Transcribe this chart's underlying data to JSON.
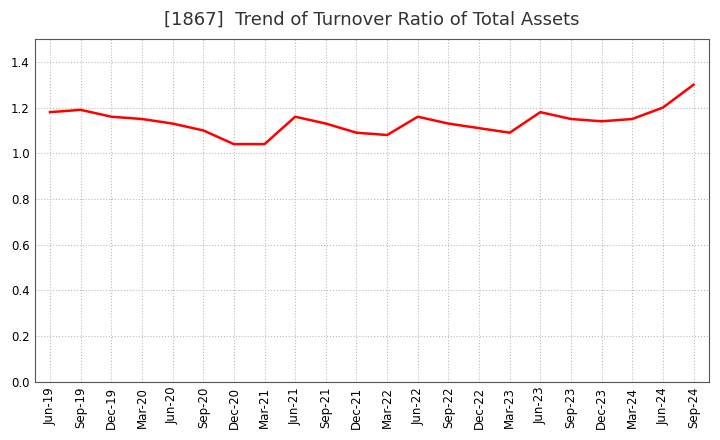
{
  "title": "[1867]  Trend of Turnover Ratio of Total Assets",
  "labels": [
    "Jun-19",
    "Sep-19",
    "Dec-19",
    "Mar-20",
    "Jun-20",
    "Sep-20",
    "Dec-20",
    "Mar-21",
    "Jun-21",
    "Sep-21",
    "Dec-21",
    "Mar-22",
    "Jun-22",
    "Sep-22",
    "Dec-22",
    "Mar-23",
    "Jun-23",
    "Sep-23",
    "Dec-23",
    "Mar-24",
    "Jun-24",
    "Sep-24"
  ],
  "values": [
    1.18,
    1.19,
    1.16,
    1.15,
    1.13,
    1.1,
    1.04,
    1.04,
    1.16,
    1.13,
    1.09,
    1.08,
    1.16,
    1.13,
    1.11,
    1.09,
    1.18,
    1.15,
    1.14,
    1.15,
    1.2,
    1.3
  ],
  "ylim": [
    0.0,
    1.5
  ],
  "yticks": [
    0.0,
    0.2,
    0.4,
    0.6,
    0.8,
    1.0,
    1.2,
    1.4
  ],
  "line_color": "#ff0000",
  "line_width": 1.8,
  "bg_color": "#ffffff",
  "plot_bg_color": "#ffffff",
  "grid_color": "#bbbbbb",
  "title_fontsize": 13,
  "tick_fontsize": 8.5
}
